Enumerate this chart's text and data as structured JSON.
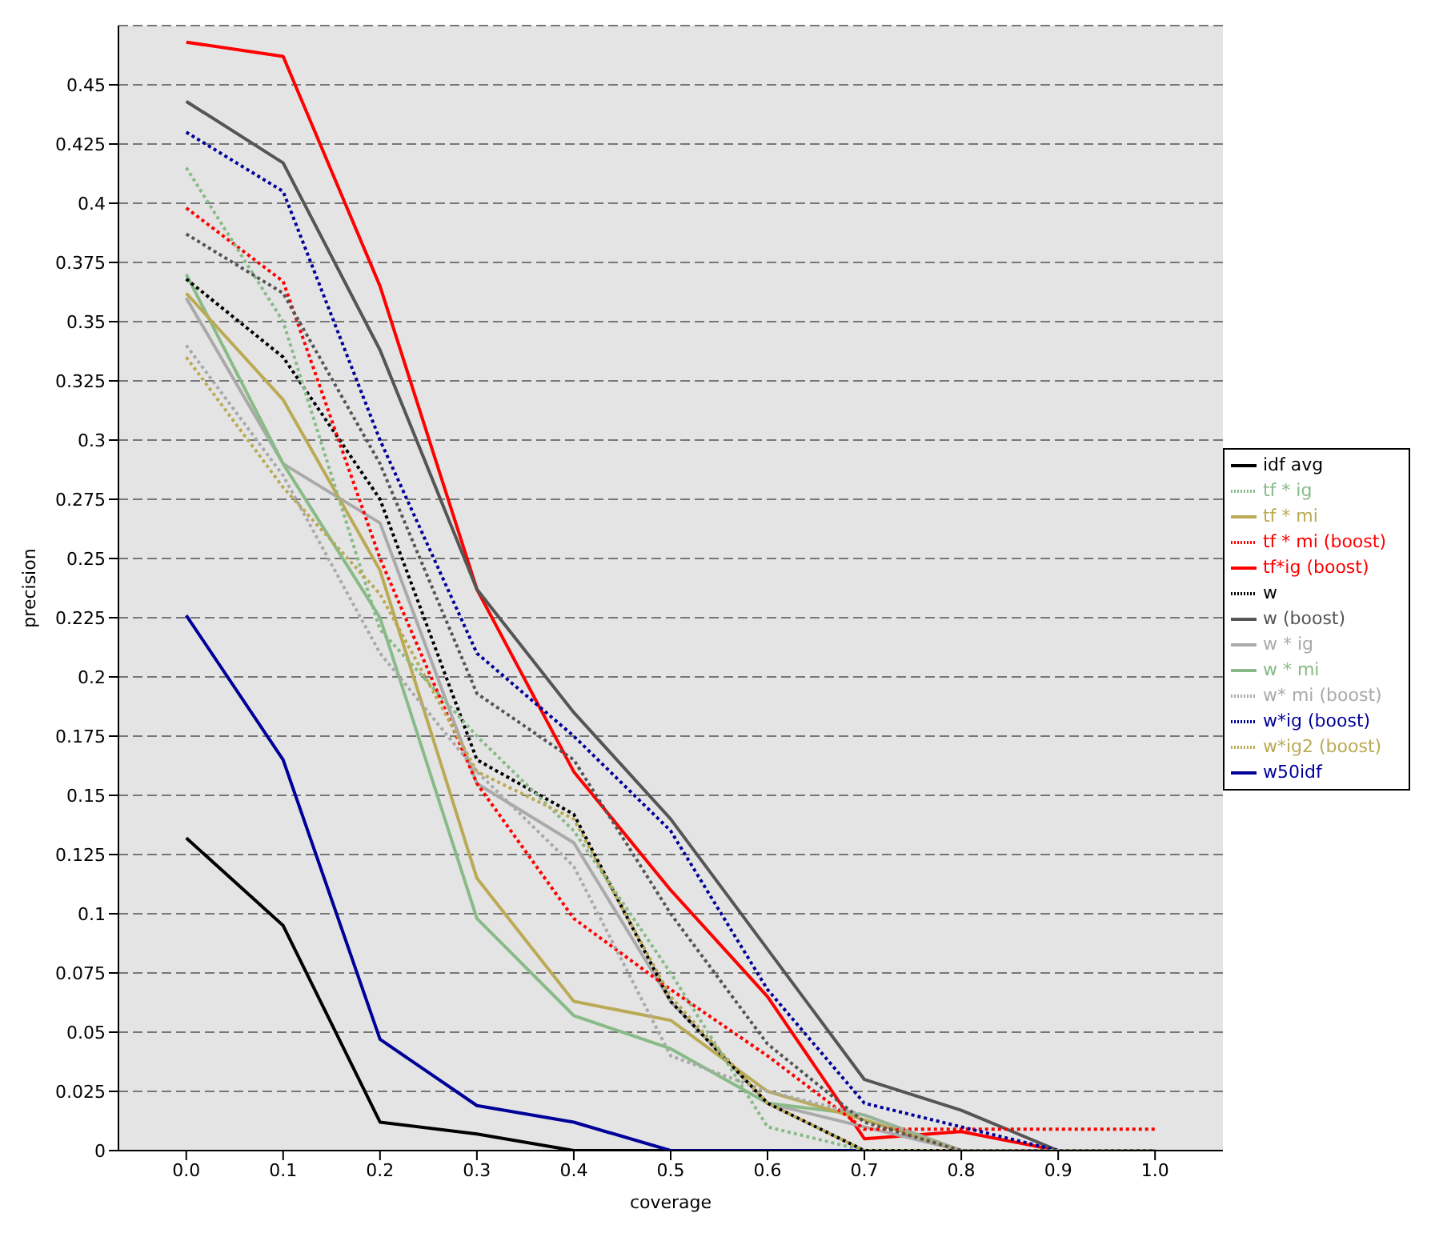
{
  "chart_data": {
    "type": "line",
    "xlabel": "coverage",
    "ylabel": "precision",
    "x": [
      0,
      0.1,
      0.2,
      0.3,
      0.4,
      0.5,
      0.6,
      0.7,
      0.8,
      0.9,
      1.0
    ],
    "xlim": [
      -0.07,
      1.07
    ],
    "xticks": [
      {
        "value": 0,
        "label": "0.0"
      },
      {
        "value": 0.1,
        "label": "0.1"
      },
      {
        "value": 0.2,
        "label": "0.2"
      },
      {
        "value": 0.3,
        "label": "0.3"
      },
      {
        "value": 0.4,
        "label": "0.4"
      },
      {
        "value": 0.5,
        "label": "0.5"
      },
      {
        "value": 0.6,
        "label": "0.6"
      },
      {
        "value": 0.7,
        "label": "0.7"
      },
      {
        "value": 0.8,
        "label": "0.8"
      },
      {
        "value": 0.9,
        "label": "0.9"
      },
      {
        "value": 1.0,
        "label": "1.0"
      }
    ],
    "ylim": [
      0,
      0.475
    ],
    "yticks": [
      0,
      0.025,
      0.05,
      0.075,
      0.1,
      0.125,
      0.15,
      0.175,
      0.2,
      0.225,
      0.25,
      0.275,
      0.3,
      0.325,
      0.35,
      0.375,
      0.4,
      0.425,
      0.45
    ],
    "grid": "y",
    "legend": "right",
    "marker": "none",
    "series": [
      {
        "name": "idf avg",
        "color": "#000000",
        "line_style": "solid",
        "values": [
          0.132,
          0.095,
          0.012,
          0.007,
          0,
          0,
          0,
          0,
          0,
          0,
          0
        ]
      },
      {
        "name": "tf*ig (boost)",
        "color": "#ff0000",
        "line_style": "solid",
        "values": [
          0.468,
          0.462,
          0.365,
          0.237,
          0.16,
          0.11,
          0.065,
          0.005,
          0.008,
          0,
          0
        ]
      },
      {
        "name": "w50idf",
        "color": "#000099",
        "line_style": "solid",
        "values": [
          0.226,
          0.165,
          0.047,
          0.019,
          0.012,
          0,
          0,
          0,
          0,
          0,
          0
        ]
      },
      {
        "name": "w * ig",
        "color": "#aaaaaa",
        "line_style": "solid",
        "values": [
          0.36,
          0.29,
          0.265,
          0.155,
          0.13,
          0.063,
          0.02,
          0.01,
          0,
          0,
          0
        ]
      },
      {
        "name": "w * mi",
        "color": "#88bb88",
        "line_style": "solid",
        "values": [
          0.37,
          0.29,
          0.225,
          0.098,
          0.057,
          0.043,
          0.02,
          0.015,
          0,
          0,
          0
        ]
      },
      {
        "name": "tf * mi",
        "color": "#bbaa55",
        "line_style": "solid",
        "values": [
          0.362,
          0.317,
          0.245,
          0.115,
          0.063,
          0.055,
          0.025,
          0.013,
          0,
          0,
          0
        ]
      },
      {
        "name": "w (boost)",
        "color": "#555555",
        "line_style": "solid",
        "values": [
          0.443,
          0.417,
          0.338,
          0.237,
          0.185,
          0.14,
          0.085,
          0.03,
          0.017,
          0,
          0
        ]
      },
      {
        "name": "w",
        "color": "#000000",
        "line_style": "dotted",
        "values": [
          0.368,
          0.335,
          0.275,
          0.165,
          0.142,
          0.063,
          0.02,
          0,
          0,
          0,
          0
        ]
      },
      {
        "name": "tf * mi (boost)",
        "color": "#ff0000",
        "line_style": "dotted",
        "values": [
          0.398,
          0.367,
          0.25,
          0.155,
          0.098,
          0.068,
          0.04,
          0.009,
          0.009,
          0.009,
          0.009
        ]
      },
      {
        "name": "w*ig (boost)",
        "color": "#000099",
        "line_style": "dotted",
        "values": [
          0.43,
          0.405,
          0.3,
          0.21,
          0.175,
          0.135,
          0.068,
          0.02,
          0.01,
          0,
          0
        ]
      },
      {
        "name": "w* mi (boost)",
        "color": "#aaaaaa",
        "line_style": "dotted",
        "values": [
          0.34,
          0.285,
          0.21,
          0.16,
          0.12,
          0.04,
          0.025,
          0.015,
          0,
          0,
          0
        ]
      },
      {
        "name": "tf * ig",
        "color": "#88bb88",
        "line_style": "dotted",
        "values": [
          0.415,
          0.35,
          0.22,
          0.175,
          0.135,
          0.075,
          0.01,
          0,
          0,
          0,
          0
        ]
      },
      {
        "name": "w*ig2 (boost)",
        "color": "#bbaa55",
        "line_style": "dotted",
        "values": [
          0.335,
          0.28,
          0.235,
          0.16,
          0.14,
          0.065,
          0.02,
          0,
          0,
          0,
          0
        ]
      },
      {
        "color": "#555555",
        "line_style": "dotted",
        "values": [
          0.387,
          0.362,
          0.29,
          0.193,
          0.165,
          0.1,
          0.045,
          0.012,
          0,
          0,
          0
        ]
      }
    ]
  }
}
